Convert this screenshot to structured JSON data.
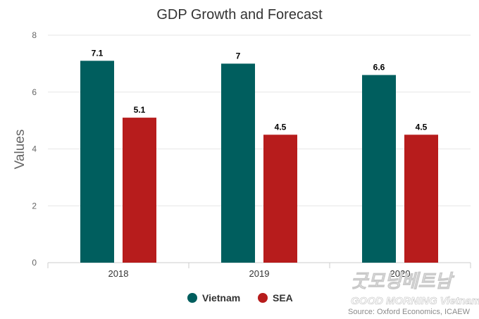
{
  "chart_data": {
    "type": "bar",
    "title": "GDP Growth and Forecast",
    "ylabel": "Values",
    "xlabel": "",
    "categories": [
      "2018",
      "2019",
      "2020"
    ],
    "ylim": [
      0,
      8
    ],
    "yticks": [
      0,
      2,
      4,
      6,
      8
    ],
    "grid": true,
    "legend_position": "bottom",
    "series": [
      {
        "name": "Vietnam",
        "color": "#005e5e",
        "values": [
          7.1,
          7,
          6.6
        ],
        "labels": [
          "7.1",
          "7",
          "6.6"
        ]
      },
      {
        "name": "SEA",
        "color": "#b71c1c",
        "values": [
          5.1,
          4.5,
          4.5
        ],
        "labels": [
          "5.1",
          "4.5",
          "4.5"
        ]
      }
    ]
  },
  "source": "Source: Oxford Economics, ICAEW",
  "watermark": {
    "line1": "굿모닝베트남",
    "line2": "GOOD MORNING Vietnam"
  }
}
